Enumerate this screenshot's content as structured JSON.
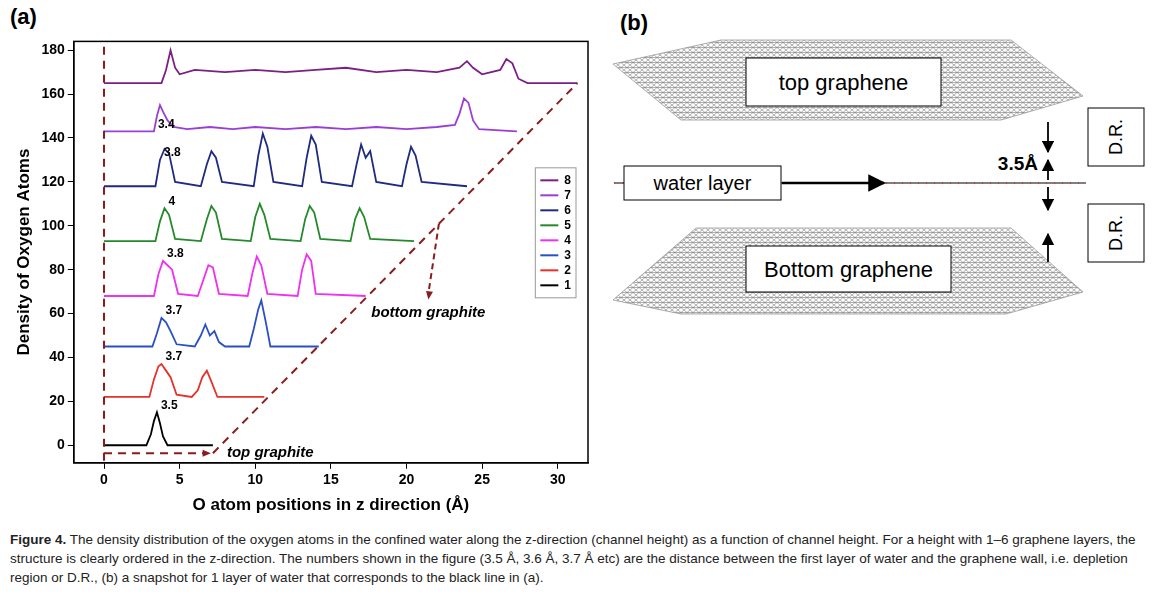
{
  "chart_data": {
    "type": "line",
    "panel": "(a)",
    "x_label": "O atom positions in z direction (Å)",
    "y_label": "Density of Oxygen Atoms",
    "xlim": [
      -2,
      32
    ],
    "xticks": [
      0,
      5,
      10,
      15,
      20,
      25,
      30
    ],
    "ylim": [
      -8,
      184
    ],
    "yticks": [
      0,
      20,
      40,
      60,
      80,
      100,
      120,
      140,
      160,
      180
    ],
    "grid": false,
    "legend": "right",
    "annotations": [
      "top graphite",
      "bottom graphite"
    ],
    "series": [
      {
        "name": "1",
        "color": "#000000",
        "depletion": 3.5,
        "x": [
          0,
          2.8,
          3.1,
          3.3,
          3.5,
          3.7,
          3.9,
          4.2,
          7.2
        ],
        "values": [
          0,
          0,
          5,
          11,
          15,
          10,
          4,
          0,
          0
        ]
      },
      {
        "name": "2",
        "color": "#e8302a",
        "depletion": 3.7,
        "x": [
          0,
          3.0,
          3.3,
          3.6,
          3.8,
          4.1,
          4.4,
          4.8,
          5.8,
          6.2,
          6.5,
          6.8,
          7.1,
          7.5,
          10.6
        ],
        "values": [
          22,
          22,
          30,
          36,
          37,
          34,
          31,
          23,
          22,
          25,
          31,
          34,
          29,
          22,
          22
        ]
      },
      {
        "name": "3",
        "color": "#2b4fc4",
        "depletion": 3.7,
        "x": [
          0,
          3.2,
          3.5,
          3.8,
          4.1,
          4.4,
          4.8,
          6.0,
          6.4,
          6.7,
          7.0,
          7.3,
          7.6,
          8.0,
          9.6,
          9.9,
          10.2,
          10.4,
          10.7,
          11.0,
          14.2
        ],
        "values": [
          45,
          45,
          51,
          58,
          56,
          52,
          46,
          45,
          50,
          55,
          50,
          52,
          47,
          45,
          45,
          53,
          62,
          66,
          56,
          45,
          45
        ]
      },
      {
        "name": "4",
        "color": "#f030f0",
        "depletion": 3.8,
        "x": [
          0,
          3.3,
          3.6,
          3.9,
          4.2,
          4.5,
          4.9,
          6.2,
          6.6,
          6.9,
          7.2,
          7.6,
          9.5,
          9.8,
          10.1,
          10.4,
          10.8,
          12.8,
          13.1,
          13.4,
          13.7,
          14.0,
          17.3
        ],
        "values": [
          68,
          68,
          78,
          84,
          82,
          80,
          69,
          68,
          76,
          82,
          81,
          69,
          68,
          78,
          86,
          82,
          69,
          68,
          80,
          87,
          84,
          69,
          68
        ]
      },
      {
        "name": "5",
        "color": "#23892b",
        "depletion": 4,
        "x": [
          0,
          3.4,
          3.7,
          4.0,
          4.3,
          4.7,
          6.4,
          6.8,
          7.1,
          7.4,
          7.8,
          9.7,
          10.0,
          10.3,
          10.6,
          11.0,
          13.0,
          13.3,
          13.6,
          13.9,
          14.3,
          16.3,
          16.6,
          16.9,
          17.2,
          17.6,
          20.5
        ],
        "values": [
          93,
          93,
          102,
          108,
          105,
          94,
          93,
          103,
          109,
          106,
          94,
          93,
          104,
          110,
          105,
          94,
          93,
          103,
          109,
          106,
          94,
          93,
          103,
          108,
          104,
          94,
          93
        ]
      },
      {
        "name": "6",
        "color": "#1f2a80",
        "depletion": 3.8,
        "x": [
          0,
          3.4,
          3.7,
          4.0,
          4.3,
          4.7,
          6.4,
          6.8,
          7.1,
          7.4,
          7.8,
          9.9,
          10.2,
          10.5,
          10.8,
          11.2,
          13.1,
          13.4,
          13.7,
          14.0,
          14.4,
          16.4,
          16.7,
          17.0,
          17.3,
          17.6,
          18.0,
          19.7,
          20.0,
          20.3,
          20.6,
          21.0,
          24.0
        ],
        "values": [
          118,
          118,
          130,
          135,
          133,
          120,
          118,
          128,
          134,
          131,
          120,
          118,
          132,
          142,
          136,
          120,
          118,
          131,
          141,
          137,
          120,
          118,
          128,
          137,
          131,
          134,
          120,
          118,
          128,
          136,
          132,
          120,
          118
        ]
      },
      {
        "name": "7",
        "color": "#9a3fd6",
        "depletion": 3.4,
        "x": [
          0,
          3.3,
          3.5,
          3.7,
          3.9,
          4.2,
          4.6,
          5.5,
          7,
          8.5,
          10,
          12,
          14,
          16,
          18,
          20,
          22,
          23.2,
          23.5,
          23.8,
          24.1,
          24.4,
          24.8,
          27.3
        ],
        "values": [
          143,
          143,
          150,
          155,
          152,
          148,
          145,
          144,
          145,
          144,
          145,
          144,
          145,
          144,
          145,
          144,
          145,
          146,
          151,
          158,
          156,
          148,
          144,
          143
        ]
      },
      {
        "name": "8",
        "color": "#7b1f86",
        "x": [
          0,
          3.8,
          4.1,
          4.4,
          4.7,
          5.0,
          6,
          8,
          10,
          12,
          14,
          16,
          18,
          20,
          22,
          23.5,
          24.0,
          24.4,
          25.0,
          26.2,
          26.6,
          27.0,
          27.4,
          28.0,
          31.3
        ],
        "values": [
          165,
          165,
          171,
          180,
          172,
          169,
          171,
          170,
          171,
          170,
          171,
          172,
          170,
          171,
          170,
          172,
          175,
          172,
          169,
          171,
          176,
          174,
          167,
          165,
          165
        ]
      }
    ]
  },
  "diagram": {
    "panel": "(b)",
    "top_sheet": "top graphene",
    "water": "water layer",
    "spacing": "3.5Å",
    "regions": [
      "D.R.",
      "D.R."
    ],
    "bottom_sheet": "Bottom graphene"
  },
  "caption": {
    "label": "Figure 4.",
    "text": "The density distribution of the oxygen atoms in the confined water along the z-direction (channel height) as a function of channel height. For a height with 1–6 graphene layers, the structure is clearly ordered in the z-direction. The numbers shown in the figure (3.5 Å, 3.6 Å, 3.7 Å etc) are the distance between the first layer of water and the graphene wall, i.e. depletion region or D.R., (b) a snapshot for 1 layer of water that corresponds to the black line in (a)."
  }
}
